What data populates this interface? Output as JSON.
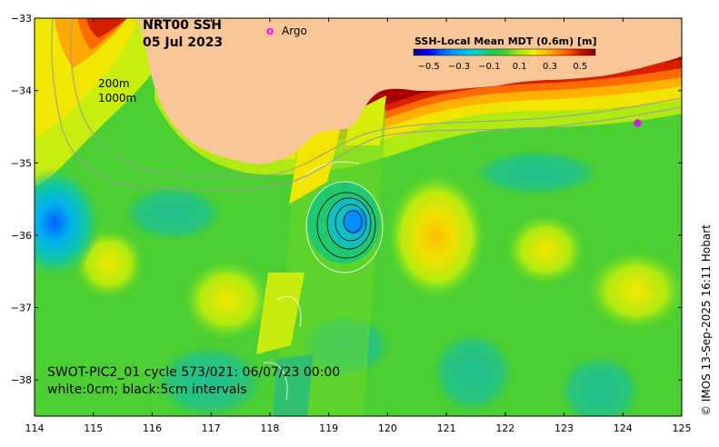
{
  "map": {
    "title_line1": "NRT00 SSH",
    "title_line2": "05 Jul 2023",
    "argo_marker": "o",
    "argo_label": "Argo",
    "contour_label_200": "200m",
    "contour_label_1000": "1000m",
    "swath_note_line1": "SWOT-PIC2_01 cycle 573/021: 06/07/23 00:00",
    "swath_note_line2": "white:0cm; black:5cm intervals",
    "credit": "© IMOS 13-Sep-2025 16:11 Hobart",
    "land_color": "#f9c797",
    "argo_color": "#ff00ff"
  },
  "colorbar": {
    "title": "SSH-Local Mean MDT (0.6m) [m]",
    "ticks": [
      "−0.5",
      "−0.3",
      "−0.1",
      "0.1",
      "0.3",
      "0.5"
    ],
    "range": [
      -0.6,
      0.6
    ],
    "colors": [
      "#00008f",
      "#0000ff",
      "#0080ff",
      "#00c0ff",
      "#00e0c0",
      "#20c880",
      "#33cc33",
      "#66dd22",
      "#aaee11",
      "#e5f000",
      "#ffd000",
      "#ff9900",
      "#ff6600",
      "#e02000",
      "#b00000",
      "#800000"
    ]
  },
  "axes": {
    "x_ticks": [
      "114",
      "115",
      "116",
      "117",
      "118",
      "119",
      "120",
      "121",
      "122",
      "123",
      "124",
      "125"
    ],
    "y_ticks": [
      "−33",
      "−34",
      "−35",
      "−36",
      "−37",
      "−38"
    ],
    "x_range": [
      114,
      125
    ],
    "y_range": [
      -38.5,
      -33
    ]
  },
  "argo_floats": [
    {
      "lon": 124.25,
      "lat": -34.45
    }
  ]
}
